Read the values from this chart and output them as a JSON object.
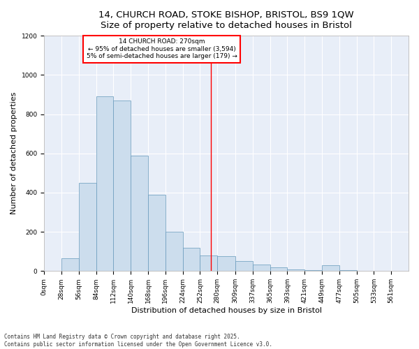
{
  "title_line1": "14, CHURCH ROAD, STOKE BISHOP, BRISTOL, BS9 1QW",
  "title_line2": "Size of property relative to detached houses in Bristol",
  "xlabel": "Distribution of detached houses by size in Bristol",
  "ylabel": "Number of detached properties",
  "bar_labels": [
    "0sqm",
    "28sqm",
    "56sqm",
    "84sqm",
    "112sqm",
    "140sqm",
    "168sqm",
    "196sqm",
    "224sqm",
    "252sqm",
    "280sqm",
    "309sqm",
    "337sqm",
    "365sqm",
    "393sqm",
    "421sqm",
    "449sqm",
    "477sqm",
    "505sqm",
    "533sqm",
    "561sqm"
  ],
  "bin_edges": [
    0,
    28,
    56,
    84,
    112,
    140,
    168,
    196,
    224,
    252,
    280,
    309,
    337,
    365,
    393,
    421,
    449,
    477,
    505,
    533,
    561,
    589
  ],
  "heights": [
    0,
    65,
    450,
    890,
    870,
    590,
    390,
    200,
    120,
    80,
    75,
    50,
    35,
    20,
    10,
    5,
    30,
    5,
    0,
    0,
    0
  ],
  "vline_x": 270,
  "annotation_line1": "14 CHURCH ROAD: 270sqm",
  "annotation_line2": "← 95% of detached houses are smaller (3,594)",
  "annotation_line3": "5% of semi-detached houses are larger (179) →",
  "bar_color": "#ccdded",
  "bar_edge_color": "#6699bb",
  "vline_color": "red",
  "box_edge_color": "red",
  "ylim": [
    0,
    1200
  ],
  "yticks": [
    0,
    200,
    400,
    600,
    800,
    1000,
    1200
  ],
  "background_color": "#e8eef8",
  "grid_color": "#ffffff",
  "footer": "Contains HM Land Registry data © Crown copyright and database right 2025.\nContains public sector information licensed under the Open Government Licence v3.0.",
  "title_fontsize": 9.5,
  "tick_fontsize": 6.5,
  "label_fontsize": 8,
  "footer_fontsize": 5.5
}
